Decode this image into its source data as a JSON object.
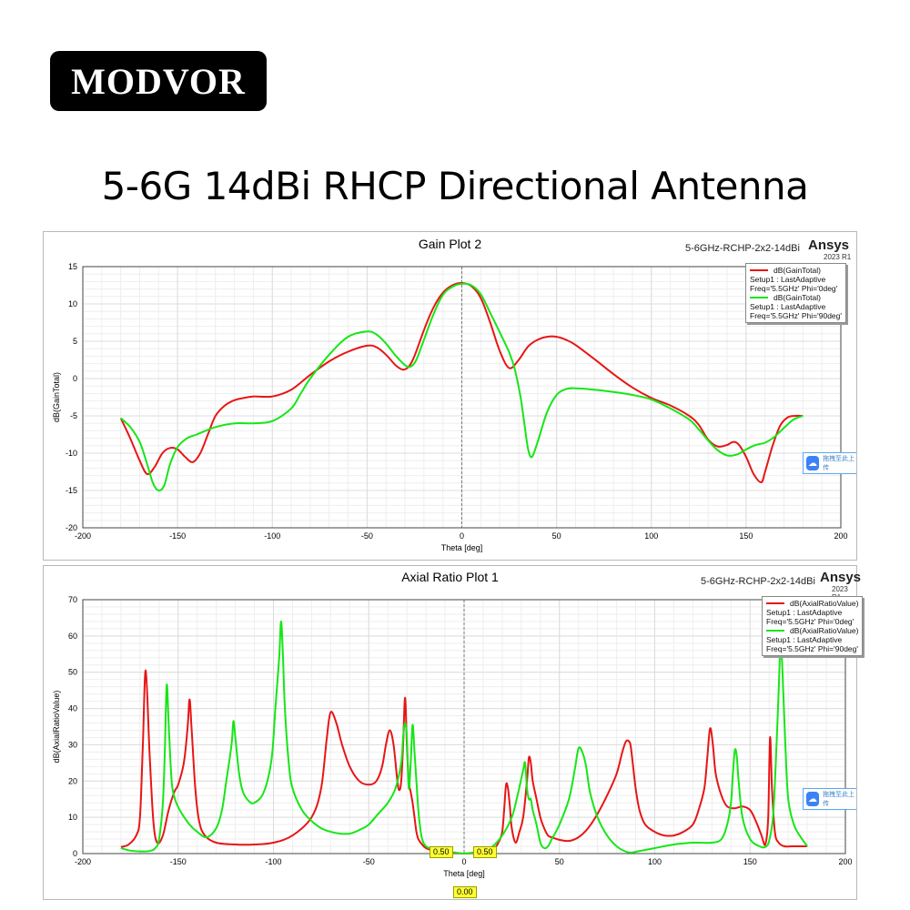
{
  "logo": "MODVOR",
  "headline": "5-6G 14dBi RHCP Directional Antenna",
  "colors": {
    "red": "#e81515",
    "green": "#16e616",
    "grid": "#dcdcdc"
  },
  "cloud_icon": "cloud-upload-icon",
  "cloud_text": "拖拽至此上传",
  "chart_data": [
    {
      "type": "line",
      "title": "Gain Plot 2",
      "project": "5-6GHz-RCHP-2x2-14dBi",
      "brand": "Ansys",
      "version": "2023 R1",
      "xlabel": "Theta [deg]",
      "ylabel": "dB(GainTotal)",
      "xlim": [
        -200,
        200
      ],
      "ylim": [
        -20,
        15
      ],
      "xticks": [
        -200,
        -150,
        -100,
        -50,
        0,
        50,
        100,
        150,
        200
      ],
      "yticks": [
        -20,
        -15,
        -10,
        -5,
        0,
        5,
        10,
        15
      ],
      "legend_position": "top-right",
      "series": [
        {
          "name": "dB(GainTotal)",
          "setup": "Setup1 : LastAdaptive",
          "freq": "Freq='5.5GHz' Phi='0deg'",
          "color": "#e81515",
          "x": [
            -180,
            -175,
            -170,
            -166,
            -162,
            -158,
            -154,
            -150,
            -146,
            -142,
            -138,
            -134,
            -130,
            -125,
            -120,
            -115,
            -110,
            -100,
            -90,
            -80,
            -70,
            -60,
            -50,
            -45,
            -40,
            -35,
            -31,
            -28,
            -25,
            -20,
            -15,
            -10,
            -5,
            0,
            5,
            10,
            15,
            20,
            25,
            30,
            35,
            40,
            45,
            50,
            55,
            60,
            70,
            80,
            90,
            100,
            110,
            120,
            125,
            130,
            135,
            140,
            143,
            146,
            150,
            154,
            158,
            160,
            164,
            168,
            172,
            176,
            180
          ],
          "y": [
            -5.3,
            -8,
            -11,
            -12.8,
            -11.8,
            -10,
            -9.3,
            -9.5,
            -10.5,
            -11.2,
            -10,
            -7.5,
            -5,
            -3.6,
            -2.9,
            -2.6,
            -2.4,
            -2.4,
            -1.5,
            0.5,
            2.3,
            3.6,
            4.4,
            4.2,
            3.2,
            1.8,
            1.2,
            1.6,
            3,
            6.5,
            9.5,
            11.5,
            12.5,
            12.8,
            12.4,
            10.8,
            7.5,
            3.7,
            1.4,
            2.5,
            4.3,
            5.2,
            5.6,
            5.6,
            5.2,
            4.5,
            2.6,
            0.6,
            -1.2,
            -2.6,
            -3.6,
            -5,
            -6.2,
            -8.2,
            -9.1,
            -8.9,
            -8.5,
            -8.8,
            -10.5,
            -12.8,
            -13.9,
            -12.5,
            -9,
            -6.3,
            -5.2,
            -5,
            -5
          ]
        },
        {
          "name": "dB(GainTotal)",
          "setup": "Setup1 : LastAdaptive",
          "freq": "Freq='5.5GHz' Phi='90deg'",
          "color": "#16e616",
          "x": [
            -180,
            -175,
            -170,
            -166,
            -163,
            -160,
            -157,
            -154,
            -150,
            -145,
            -140,
            -130,
            -120,
            -110,
            -100,
            -90,
            -85,
            -80,
            -70,
            -60,
            -50,
            -45,
            -40,
            -35,
            -30,
            -27,
            -24,
            -20,
            -15,
            -10,
            -5,
            0,
            5,
            10,
            15,
            20,
            25,
            28,
            31,
            33,
            35,
            37,
            40,
            45,
            50,
            55,
            60,
            70,
            80,
            90,
            100,
            110,
            120,
            125,
            130,
            135,
            140,
            145,
            150,
            155,
            160,
            165,
            170,
            175,
            180
          ],
          "y": [
            -5.3,
            -6.5,
            -8.5,
            -11.5,
            -14,
            -15,
            -14.3,
            -11.5,
            -9.2,
            -8,
            -7.5,
            -6.5,
            -6,
            -6,
            -5.7,
            -4,
            -2,
            0,
            3.2,
            5.6,
            6.3,
            5.9,
            4.7,
            3.1,
            1.8,
            1.6,
            2.5,
            5.2,
            8.6,
            11.2,
            12.3,
            12.7,
            12.5,
            11.3,
            8.8,
            6.2,
            3.5,
            1.2,
            -2.5,
            -6,
            -9.5,
            -10.5,
            -8.5,
            -4.5,
            -2.2,
            -1.4,
            -1.3,
            -1.5,
            -1.8,
            -2.2,
            -2.8,
            -4,
            -5.5,
            -6.8,
            -8.3,
            -9.6,
            -10.3,
            -10.2,
            -9.5,
            -8.9,
            -8.6,
            -7.8,
            -6.6,
            -5.5,
            -5
          ]
        }
      ]
    },
    {
      "type": "line",
      "title": "Axial Ratio Plot 1",
      "project": "5-6GHz-RCHP-2x2-14dBi",
      "brand": "Ansys",
      "version": "2023 R1",
      "xlabel": "Theta [deg]",
      "ylabel": "dB(AxialRatioValue)",
      "xlim": [
        -200,
        200
      ],
      "ylim": [
        0,
        70
      ],
      "xticks": [
        -200,
        -150,
        -100,
        -50,
        0,
        50,
        100,
        150,
        200
      ],
      "yticks": [
        0,
        10,
        20,
        30,
        40,
        50,
        60,
        70
      ],
      "legend_position": "top-right",
      "markers": [
        "0.50",
        "0.50",
        "0.00"
      ],
      "series": [
        {
          "name": "dB(AxialRatioValue)",
          "setup": "Setup1 : LastAdaptive",
          "freq": "Freq='5.5GHz' Phi='0deg'",
          "color": "#e81515",
          "x": [
            -180,
            -176,
            -172,
            -170,
            -168.5,
            -167,
            -165,
            -163,
            -161,
            -158,
            -155,
            -152,
            -150,
            -147,
            -145,
            -144,
            -143,
            -141,
            -139,
            -136,
            -130,
            -120,
            -110,
            -100,
            -90,
            -80,
            -75,
            -72,
            -70,
            -67,
            -64,
            -60,
            -55,
            -50,
            -46,
            -43,
            -41,
            -39,
            -37,
            -35,
            -34,
            -33,
            -32,
            -31,
            -30,
            -29,
            -28,
            -27,
            -26,
            -25,
            -24,
            -22,
            -20,
            -16,
            -12,
            -8,
            -4,
            0,
            4,
            8,
            12,
            16,
            18,
            20,
            21,
            22,
            23,
            24,
            25,
            27,
            29,
            31,
            33,
            34,
            35,
            36,
            38,
            40,
            42,
            44,
            46,
            50,
            55,
            60,
            65,
            70,
            75,
            80,
            83,
            85,
            87,
            88,
            90,
            92,
            95,
            100,
            105,
            110,
            115,
            120,
            123,
            126,
            127.5,
            129,
            130.5,
            132,
            135,
            138,
            142,
            146,
            150,
            153,
            156,
            158,
            159.5,
            160.5,
            161.5,
            163,
            165,
            168,
            172,
            176,
            180
          ],
          "y": [
            1.8,
            2.5,
            5,
            10,
            30,
            50.5,
            28,
            9,
            3,
            5,
            12,
            17,
            19,
            25,
            35,
            42.5,
            35,
            18,
            9,
            5,
            3,
            2.5,
            2.5,
            3,
            5,
            10,
            18,
            32,
            39,
            36,
            30,
            24,
            20,
            19,
            20,
            24,
            30,
            34,
            30,
            20,
            17.5,
            20,
            30,
            43,
            30,
            20,
            17,
            14,
            10,
            6,
            4,
            2.5,
            1.5,
            0.8,
            0.4,
            0.2,
            0.1,
            0,
            0.1,
            0.2,
            0.5,
            1.5,
            3,
            6,
            12,
            19,
            18,
            13,
            7,
            3,
            6,
            10,
            20,
            26.5,
            25,
            20,
            15,
            10,
            7,
            5,
            4.5,
            3.8,
            3.5,
            4.5,
            7,
            11,
            16,
            22,
            28,
            31,
            30.5,
            27,
            18,
            12,
            8,
            6,
            5,
            5,
            6,
            8,
            12,
            18,
            26,
            34.5,
            30,
            22,
            16,
            13,
            12.5,
            13,
            12,
            9,
            5,
            2.5,
            10,
            32,
            18,
            6,
            3,
            2,
            2,
            2,
            2
          ]
        },
        {
          "name": "dB(AxialRatioValue)",
          "setup": "Setup1 : LastAdaptive",
          "freq": "Freq='5.5GHz' Phi='90deg'",
          "color": "#16e616",
          "x": [
            -180,
            -175,
            -170,
            -165,
            -162,
            -160,
            -158,
            -157,
            -156,
            -155,
            -154,
            -153,
            -151,
            -148,
            -144,
            -140,
            -135,
            -130,
            -127,
            -125,
            -122,
            -121,
            -120,
            -118,
            -116,
            -113,
            -110,
            -105,
            -101,
            -99,
            -97,
            -96,
            -95,
            -94,
            -92,
            -90,
            -85,
            -80,
            -75,
            -70,
            -65,
            -60,
            -55,
            -50,
            -45,
            -40,
            -36,
            -33,
            -32,
            -31,
            -30,
            -29,
            -28,
            -27,
            -26,
            -25,
            -24,
            -23,
            -22,
            -20,
            -15,
            -10,
            -5,
            0,
            5,
            10,
            15,
            20,
            25,
            28,
            31,
            32,
            33,
            34,
            35,
            36,
            38,
            40,
            42,
            44,
            46,
            50,
            55,
            58,
            60,
            62,
            64,
            66,
            70,
            75,
            80,
            85,
            88,
            90,
            95,
            100,
            110,
            120,
            130,
            135,
            138,
            140,
            141,
            142,
            143,
            144,
            146,
            150,
            155,
            158,
            160,
            162,
            163.5,
            165,
            166,
            167,
            168.5,
            170,
            173,
            176,
            180
          ],
          "y": [
            1.5,
            0.8,
            0.6,
            0.7,
            1.5,
            4,
            14,
            28,
            46.5,
            36,
            25,
            18,
            14,
            11,
            8,
            6,
            4.5,
            7,
            12,
            19,
            30,
            36.5,
            32,
            22,
            17,
            14.5,
            14,
            17,
            26,
            40,
            54,
            64,
            54,
            40,
            25,
            18,
            12,
            9,
            7,
            6,
            5.5,
            5.5,
            6.5,
            8,
            11,
            14,
            18,
            25,
            32,
            36,
            32,
            18,
            25,
            35.5,
            28,
            20,
            12,
            7,
            4,
            2,
            1,
            0.6,
            0.3,
            0,
            0.3,
            0.8,
            2,
            5,
            10,
            16,
            23,
            25,
            18,
            15,
            15,
            12,
            8,
            3,
            1.5,
            2,
            4,
            8,
            15,
            23,
            29,
            28,
            24,
            17,
            10,
            5,
            2,
            0.5,
            0.3,
            0.5,
            1,
            1.5,
            2.5,
            3,
            3,
            4,
            8,
            14,
            22,
            28.5,
            27,
            20,
            10,
            4,
            2,
            1.8,
            3.5,
            10,
            25,
            45,
            58,
            50,
            30,
            15,
            8,
            5,
            2
          ]
        }
      ]
    }
  ]
}
